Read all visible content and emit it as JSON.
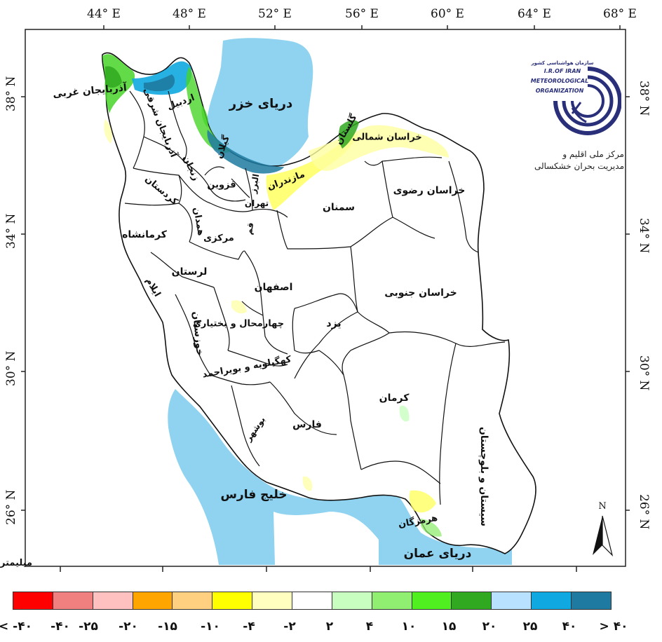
{
  "map": {
    "longitude_labels": [
      "44° E",
      "48° E",
      "52° E",
      "56° E",
      "60° E",
      "64° E",
      "68° E"
    ],
    "latitude_labels": [
      "38° N",
      "34° N",
      "30° N",
      "26° N"
    ],
    "unit_label": "میلیمتر",
    "north_label": "N"
  },
  "water_bodies": {
    "caspian": "دریای خزر",
    "persian_gulf": "خلیج فارس",
    "oman_sea": "دریای عمان"
  },
  "provinces": [
    {
      "name": "آذربایجان غربی"
    },
    {
      "name": "آذربایجان شرقی"
    },
    {
      "name": "اردبیل"
    },
    {
      "name": "گیلان"
    },
    {
      "name": "زنجان"
    },
    {
      "name": "کردستان"
    },
    {
      "name": "قزوین"
    },
    {
      "name": "البرز"
    },
    {
      "name": "مازندران"
    },
    {
      "name": "گلستان"
    },
    {
      "name": "خراسان شمالی"
    },
    {
      "name": "خراسان رضوی"
    },
    {
      "name": "تهران"
    },
    {
      "name": "سمنان"
    },
    {
      "name": "همدان"
    },
    {
      "name": "کرمانشاه"
    },
    {
      "name": "قم"
    },
    {
      "name": "مرکزی"
    },
    {
      "name": "لرستان"
    },
    {
      "name": "ایلام"
    },
    {
      "name": "اصفهان"
    },
    {
      "name": "خراسان جنوبی"
    },
    {
      "name": "خوزستان"
    },
    {
      "name": "چهارمحال و بختیاری"
    },
    {
      "name": "یزد"
    },
    {
      "name": "کهگیلویه و بویراحمد"
    },
    {
      "name": "کرمان"
    },
    {
      "name": "بوشهر"
    },
    {
      "name": "فارس"
    },
    {
      "name": "سیستان و بلوچستان"
    },
    {
      "name": "هرمزگان"
    }
  ],
  "organization": {
    "name_fa": "سازمان هواشناسی کشور",
    "name_en_line1": "I.R.OF IRAN",
    "name_en_line2": "METEOROLOGICAL",
    "name_en_line3": "ORGANIZATION",
    "center_line1": "مرکز ملی اقلیم و",
    "center_line2": "مدیریت بحران خشکسالی"
  },
  "legend": {
    "colors": [
      "#ff0000",
      "#f08080",
      "#ffc0c0",
      "#ffa500",
      "#ffd080",
      "#ffff00",
      "#ffffc0",
      "#ffffff",
      "#c8ffc0",
      "#90ee70",
      "#50f020",
      "#30a820",
      "#b8e0ff",
      "#10a8e0",
      "#1e7aa0"
    ],
    "tick_labels": [
      "< -۴۰",
      "-۴۰",
      "-۲۵",
      "-۲۰",
      "-۱۵",
      "-۱۰",
      "-۴",
      "-۲",
      "۲",
      "۴",
      "۱۰",
      "۱۵",
      "۲۰",
      "۲۵",
      "۴۰",
      "> ۴۰"
    ]
  }
}
